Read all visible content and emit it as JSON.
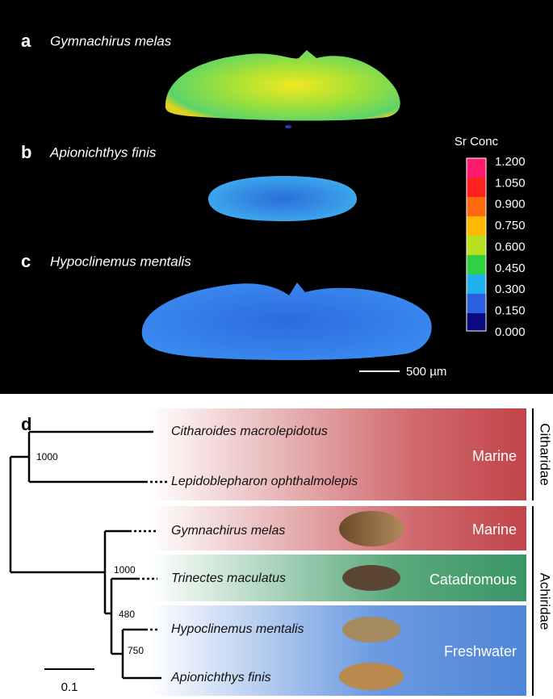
{
  "panels": [
    {
      "letter": "a",
      "species": "Gymnachirus melas"
    },
    {
      "letter": "b",
      "species": "Apionichthys finis"
    },
    {
      "letter": "c",
      "species": "Hypoclinemus mentalis"
    }
  ],
  "colorbar": {
    "title": "Sr Conc",
    "ticks": [
      "1.200",
      "1.050",
      "0.900",
      "0.750",
      "0.600",
      "0.450",
      "0.300",
      "0.150",
      "0.000"
    ]
  },
  "scale_bar": "500 µm",
  "tree": {
    "letter": "d",
    "taxa": [
      "Citharoides macrolepidotus",
      "Lepidoblepharon ophthalmolepis",
      "Gymnachirus melas",
      "Trinectes maculatus",
      "Hypoclinemus mentalis",
      "Apionichthys finis"
    ],
    "support": [
      "1000",
      "1000",
      "480",
      "750"
    ],
    "habitats": [
      "Marine",
      "Marine",
      "Catadromous",
      "Freshwater"
    ],
    "families": [
      "Citharidae",
      "Achiridae"
    ],
    "scale": "0.1"
  }
}
